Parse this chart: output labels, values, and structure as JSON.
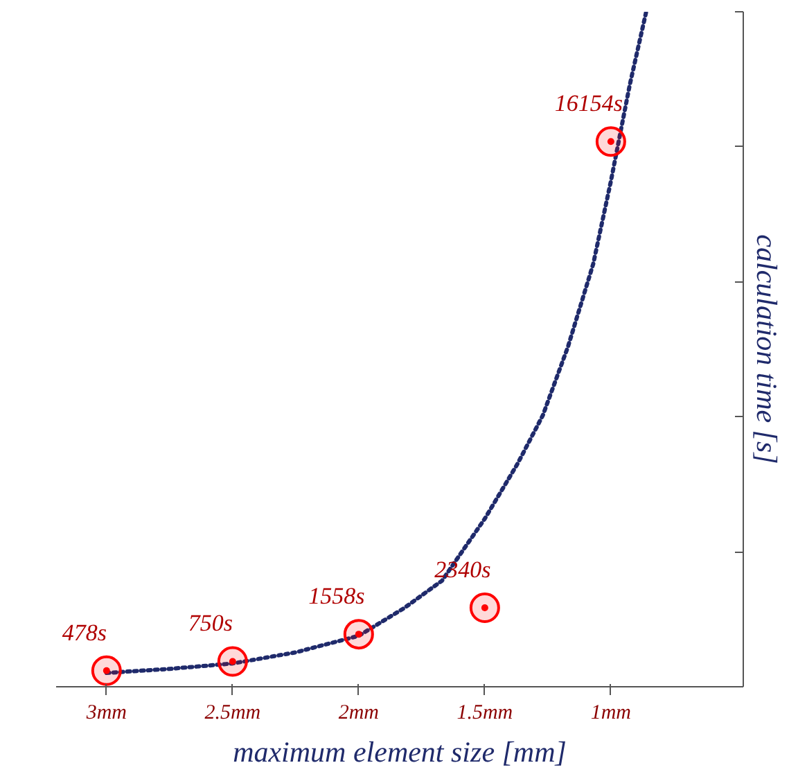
{
  "chart_data": {
    "type": "scatter",
    "xlabel": "maximum element size [mm]",
    "ylabel": "calculation time [s]",
    "xlim": [
      3.2,
      0.475
    ],
    "xticks": [
      {
        "value": 3,
        "label": "3mm"
      },
      {
        "value": 2.5,
        "label": "2.5mm"
      },
      {
        "value": 2,
        "label": "2mm"
      },
      {
        "value": 1.5,
        "label": "1.5mm"
      },
      {
        "value": 1,
        "label": "1mm"
      }
    ],
    "ylim": [
      0,
      20000
    ],
    "yticks": [
      {
        "value": 0,
        "label": null
      },
      {
        "value": 4000,
        "label": null
      },
      {
        "value": 8000,
        "label": null
      },
      {
        "value": 12000,
        "label": null
      },
      {
        "value": 16000,
        "label": null
      },
      {
        "value": 20000,
        "label": null
      }
    ],
    "tick_labels": "x",
    "grid": false,
    "series": [
      {
        "type": "line",
        "color": "#1f2a6b",
        "line_style": "dotted",
        "marker": "none",
        "x": [
          3,
          2.75,
          2.5,
          2.25,
          2,
          1.82,
          1.67,
          1.5,
          1.37,
          1.27,
          1.17,
          1.07,
          1.0,
          0.925,
          0.86
        ],
        "values": [
          410,
          530,
          690,
          1020,
          1510,
          2330,
          3140,
          4980,
          6610,
          8040,
          10080,
          12530,
          14980,
          17840,
          20000
        ]
      },
      {
        "color": "#ff0000",
        "marker": "circle",
        "x": [
          3,
          2.5,
          2,
          1.5,
          1
        ],
        "values": [
          478,
          750,
          1558,
          2340,
          16154
        ],
        "value_labels": [
          "478s",
          "750s",
          "1558s",
          "2340s",
          "16154s"
        ]
      }
    ]
  }
}
